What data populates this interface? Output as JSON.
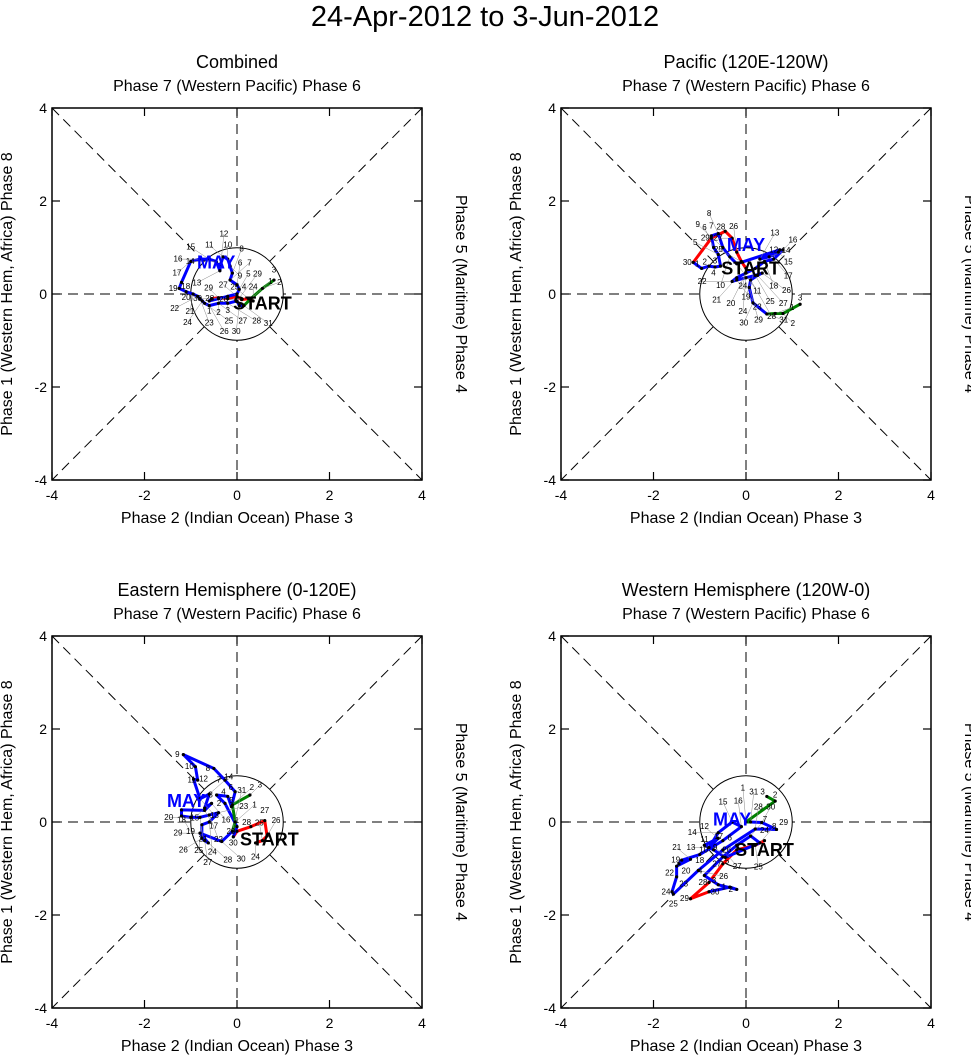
{
  "title": "24-Apr-2012 to 3-Jun-2012",
  "axis_labels": {
    "top": "Phase 7 (Western Pacific) Phase 6",
    "bottom": "Phase 2 (Indian Ocean) Phase 3",
    "left": "Phase 1 (Western Hem, Africa) Phase 8",
    "right": "Phase 5 (Maritime) Phase 4"
  },
  "colors": {
    "april": "#ff0000",
    "may": "#0000ff",
    "june": "#008000",
    "may_label": "#0000ff"
  },
  "chart_data": [
    {
      "type": "line",
      "title": "Combined",
      "xlim": [
        -4,
        4
      ],
      "ylim": [
        -4,
        4
      ],
      "xticks": [
        -4,
        -2,
        0,
        2,
        4
      ],
      "yticks": [
        -4,
        -2,
        0,
        2,
        4
      ],
      "series": [
        {
          "name": "April",
          "color": "#ff0000",
          "days": [
            24,
            25,
            26,
            27,
            28,
            29,
            30
          ],
          "x": [
            0.35,
            0.25,
            0.1,
            0.0,
            -0.2,
            -0.4,
            -0.55
          ],
          "y": [
            -0.15,
            -0.1,
            -0.12,
            -0.05,
            -0.1,
            -0.08,
            -0.1
          ]
        },
        {
          "name": "May",
          "color": "#0000ff",
          "days": [
            1,
            2,
            3,
            4,
            5,
            6,
            7,
            8,
            9,
            10,
            11,
            12,
            13,
            14,
            15,
            16,
            17,
            18,
            19,
            20,
            21,
            22,
            23,
            24,
            25,
            26,
            27,
            28,
            29,
            30,
            31
          ],
          "x": [
            -0.6,
            -0.4,
            -0.2,
            0.0,
            0.05,
            0.0,
            -0.15,
            -0.1,
            -0.15,
            -0.2,
            -0.3,
            -0.35,
            -0.37,
            -0.45,
            -0.6,
            -0.8,
            -1.0,
            -1.2,
            -1.25,
            -1.1,
            -0.95,
            -0.85,
            -0.8,
            -0.75,
            -0.7,
            -0.6,
            -0.4,
            -0.2,
            0.0,
            0.05,
            0.15
          ],
          "y": [
            -0.15,
            -0.1,
            -0.05,
            0.0,
            0.1,
            0.2,
            0.3,
            0.45,
            0.6,
            0.75,
            0.8,
            0.65,
            0.5,
            0.7,
            0.75,
            0.75,
            0.7,
            0.25,
            0.12,
            0.05,
            0.0,
            -0.05,
            -0.1,
            -0.15,
            -0.2,
            -0.25,
            -0.2,
            -0.2,
            -0.15,
            -0.25,
            -0.25
          ]
        },
        {
          "name": "June",
          "color": "#008000",
          "days": [
            1,
            2,
            3
          ],
          "x": [
            0.3,
            0.55,
            0.8
          ],
          "y": [
            -0.1,
            0.12,
            0.3
          ]
        }
      ],
      "annotations": [
        {
          "text": "MAY",
          "x": -0.45,
          "y": 0.68,
          "color": "#0000ff"
        },
        {
          "text": "START",
          "x": 0.55,
          "y": -0.2,
          "color": "#000000"
        }
      ]
    },
    {
      "type": "line",
      "title": "Pacific (120E-120W)",
      "xlim": [
        -4,
        4
      ],
      "ylim": [
        -4,
        4
      ],
      "xticks": [
        -4,
        -2,
        0,
        2,
        4
      ],
      "yticks": [
        -4,
        -2,
        0,
        2,
        4
      ],
      "series": [
        {
          "name": "April",
          "color": "#ff0000",
          "days": [
            24,
            25,
            26,
            27,
            28,
            29,
            30
          ],
          "x": [
            0.0,
            -0.1,
            -0.2,
            -0.3,
            -0.45,
            -0.75,
            -1.14
          ],
          "y": [
            0.55,
            0.7,
            0.9,
            1.2,
            1.35,
            1.2,
            0.68
          ]
        },
        {
          "name": "May",
          "color": "#0000ff",
          "days": [
            1,
            2,
            3,
            4,
            5,
            6,
            7,
            8,
            9,
            10,
            11,
            12,
            13,
            14,
            15,
            16,
            17,
            18,
            19,
            20,
            21,
            22,
            23,
            24,
            25,
            26,
            27,
            28,
            29,
            30,
            31
          ],
          "x": [
            -0.96,
            -0.8,
            -0.67,
            -0.55,
            -0.6,
            -0.7,
            -0.75,
            -0.6,
            -0.5,
            -0.35,
            -0.2,
            0.73,
            0.3,
            0.5,
            0.7,
            0.8,
            0.6,
            0.4,
            0.2,
            0.0,
            -0.2,
            -0.3,
            -0.2,
            0.0,
            0.2,
            0.35,
            0.25,
            0.1,
            0.07,
            0.15,
            0.45
          ],
          "y": [
            0.55,
            0.6,
            0.58,
            0.6,
            0.85,
            1.0,
            1.25,
            1.3,
            1.0,
            0.8,
            0.65,
            0.95,
            0.75,
            0.8,
            0.9,
            0.95,
            0.75,
            0.7,
            0.55,
            0.45,
            0.35,
            0.27,
            0.3,
            0.35,
            0.4,
            0.45,
            0.4,
            0.3,
            0.14,
            -0.19,
            -0.43
          ]
        },
        {
          "name": "June",
          "color": "#008000",
          "days": [
            1,
            2,
            3
          ],
          "x": [
            0.63,
            0.8,
            1.17
          ],
          "y": [
            -0.42,
            -0.42,
            -0.22
          ]
        }
      ],
      "annotations": [
        {
          "text": "MAY",
          "x": 0.0,
          "y": 1.05,
          "color": "#0000ff"
        },
        {
          "text": "START",
          "x": 0.1,
          "y": 0.55,
          "color": "#000000"
        }
      ]
    },
    {
      "type": "line",
      "title": "Eastern Hemisphere (0-120E)",
      "xlim": [
        -4,
        4
      ],
      "ylim": [
        -4,
        4
      ],
      "xticks": [
        -4,
        -2,
        0,
        2,
        4
      ],
      "yticks": [
        -4,
        -2,
        0,
        2,
        4
      ],
      "series": [
        {
          "name": "April",
          "color": "#ff0000",
          "days": [
            24,
            25,
            26,
            27,
            28,
            29,
            30
          ],
          "x": [
            0.4,
            0.55,
            0.65,
            0.6,
            0.3,
            0.0,
            -0.08
          ],
          "y": [
            -0.45,
            -0.4,
            -0.3,
            0.03,
            -0.1,
            -0.2,
            -0.32
          ]
        },
        {
          "name": "May",
          "color": "#0000ff",
          "days": [
            1,
            2,
            3,
            4,
            5,
            6,
            7,
            8,
            9,
            10,
            11,
            12,
            13,
            14,
            15,
            16,
            17,
            18,
            19,
            20,
            21,
            22,
            23,
            24,
            25,
            26,
            27,
            28,
            29,
            30,
            31
          ],
          "x": [
            0.0,
            -0.26,
            -0.44,
            -0.2,
            -0.12,
            -0.04,
            -0.26,
            -0.5,
            -1.16,
            -0.9,
            -0.85,
            -0.94,
            -0.8,
            -0.6,
            -0.7,
            -0.55,
            -0.7,
            -1.2,
            -1.2,
            -1.0,
            -0.8,
            -0.6,
            -0.4,
            -0.6,
            -0.76,
            -0.76,
            -0.7,
            -0.62,
            -0.8,
            -0.33,
            -0.1
          ],
          "y": [
            -0.1,
            0.4,
            0.58,
            0.55,
            0.33,
            0.65,
            0.9,
            1.15,
            1.45,
            1.19,
            0.9,
            0.92,
            0.5,
            0.6,
            0.3,
            0.4,
            0.25,
            0.26,
            0.13,
            0.1,
            0.1,
            0.15,
            0.2,
            0.0,
            -0.06,
            -0.35,
            -0.4,
            -0.45,
            -0.24,
            -0.42,
            -0.2
          ]
        },
        {
          "name": "June",
          "color": "#008000",
          "days": [
            1,
            2,
            3
          ],
          "x": [
            -0.04,
            -0.1,
            0.28
          ],
          "y": [
            0.0,
            0.37,
            0.58
          ]
        }
      ],
      "annotations": [
        {
          "text": "MAY",
          "x": -1.1,
          "y": 0.45,
          "color": "#0000ff"
        },
        {
          "text": "START",
          "x": 0.7,
          "y": -0.38,
          "color": "#000000"
        }
      ]
    },
    {
      "type": "line",
      "title": "Western Hemisphere (120W-0)",
      "xlim": [
        -4,
        4
      ],
      "ylim": [
        -4,
        4
      ],
      "xticks": [
        -4,
        -2,
        0,
        2,
        4
      ],
      "yticks": [
        -4,
        -2,
        0,
        2,
        4
      ],
      "series": [
        {
          "name": "April",
          "color": "#ff0000",
          "days": [
            24,
            25,
            26,
            27,
            28,
            29,
            30
          ],
          "x": [
            0.4,
            0.2,
            -0.2,
            -0.5,
            -0.8,
            -1.2,
            -0.8
          ],
          "y": [
            -0.4,
            -0.5,
            -0.6,
            -0.9,
            -1.3,
            -1.65,
            -1.5
          ]
        },
        {
          "name": "May",
          "color": "#0000ff",
          "days": [
            1,
            2,
            3,
            4,
            5,
            6,
            7,
            8,
            9,
            10,
            11,
            12,
            13,
            14,
            15,
            16,
            17,
            18,
            19,
            20,
            21,
            22,
            23,
            24,
            25,
            26,
            27,
            28,
            29,
            30,
            31
          ],
          "x": [
            -0.35,
            -0.2,
            -0.6,
            -0.9,
            -0.5,
            -0.2,
            0.1,
            0.3,
            -0.45,
            -0.7,
            -0.9,
            -0.6,
            -0.8,
            -0.6,
            -0.3,
            -0.1,
            -0.5,
            -1.0,
            -1.39,
            -1.45,
            -1.2,
            -1.5,
            -1.5,
            -1.6,
            -1.57,
            -1.03,
            -0.5,
            0.2,
            0.66,
            0.34,
            0.1
          ],
          "y": [
            -1.4,
            -1.45,
            -1.35,
            -1.15,
            -0.75,
            -0.5,
            -0.3,
            -0.45,
            -0.76,
            -0.6,
            -0.5,
            -0.35,
            -0.55,
            -0.23,
            0.0,
            -0.1,
            -0.4,
            -0.7,
            -0.82,
            -0.9,
            -0.8,
            -0.95,
            -1.18,
            -1.5,
            -1.55,
            -1.04,
            -0.6,
            -0.15,
            -0.16,
            -0.01,
            0.0
          ]
        },
        {
          "name": "June",
          "color": "#008000",
          "days": [
            1,
            2,
            3
          ],
          "x": [
            0.0,
            0.63,
            0.45
          ],
          "y": [
            0.0,
            0.45,
            0.55
          ]
        }
      ],
      "annotations": [
        {
          "text": "MAY",
          "x": -0.3,
          "y": 0.05,
          "color": "#0000ff"
        },
        {
          "text": "START",
          "x": 0.4,
          "y": -0.6,
          "color": "#000000"
        }
      ]
    }
  ]
}
